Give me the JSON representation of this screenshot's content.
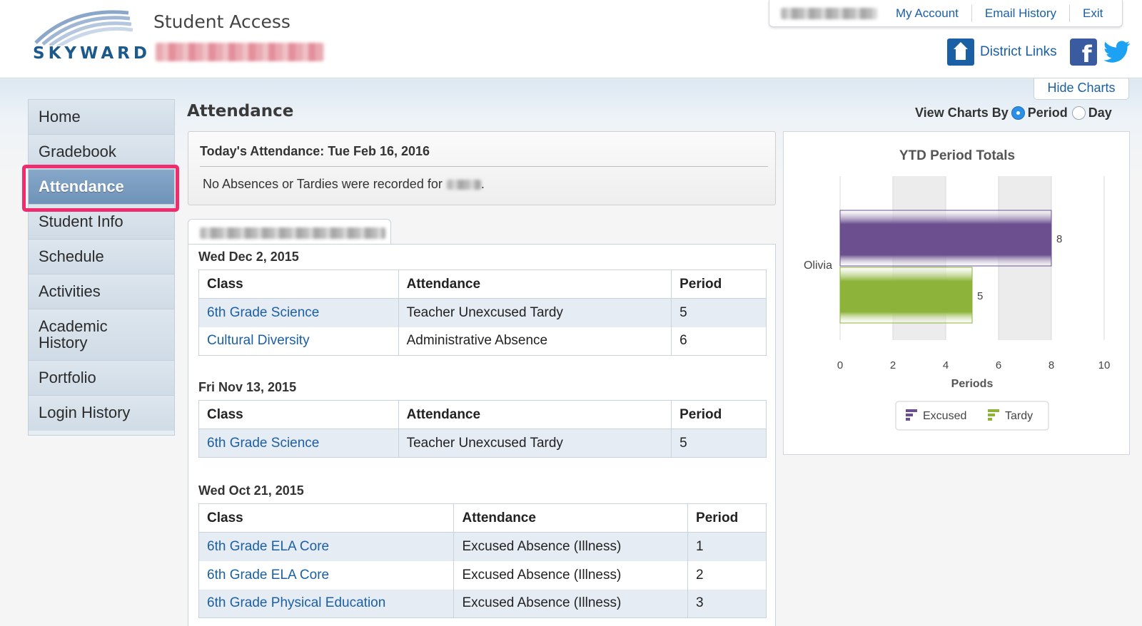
{
  "header": {
    "logo_text": "SKYWARD",
    "app_title": "Student Access",
    "top_links": [
      "My Account",
      "Email History",
      "Exit"
    ],
    "district_links_label": "District Links"
  },
  "sidebar": {
    "items": [
      {
        "label": "Home",
        "active": false
      },
      {
        "label": "Gradebook",
        "active": false
      },
      {
        "label": "Attendance",
        "active": true
      },
      {
        "label": "Student Info",
        "active": false
      },
      {
        "label": "Schedule",
        "active": false
      },
      {
        "label": "Activities",
        "active": false
      },
      {
        "label": "Academic History",
        "active": false
      },
      {
        "label": "Portfolio",
        "active": false
      },
      {
        "label": "Login History",
        "active": false
      }
    ]
  },
  "main": {
    "title": "Attendance",
    "today": {
      "title": "Today's Attendance: Tue Feb 16, 2016",
      "message": "No Absences or Tardies were recorded for",
      "message_end": "."
    },
    "columns": [
      "Class",
      "Attendance",
      "Period"
    ],
    "groups": [
      {
        "date": "Wed Dec 2, 2015",
        "rows": [
          {
            "class": "6th Grade Science",
            "attendance": "Teacher Unexcused Tardy",
            "period": "5"
          },
          {
            "class": "Cultural Diversity",
            "attendance": "Administrative Absence",
            "period": "6"
          }
        ]
      },
      {
        "date": "Fri Nov 13, 2015",
        "rows": [
          {
            "class": "6th Grade Science",
            "attendance": "Teacher Unexcused Tardy",
            "period": "5"
          }
        ]
      },
      {
        "date": "Wed Oct 21, 2015",
        "rows": [
          {
            "class": "6th Grade ELA Core",
            "attendance": "Excused Absence (Illness)",
            "period": "1"
          },
          {
            "class": "6th Grade ELA Core",
            "attendance": "Excused Absence (Illness)",
            "period": "2"
          },
          {
            "class": "6th Grade Physical Education",
            "attendance": "Excused Absence (Illness)",
            "period": "3"
          }
        ]
      }
    ]
  },
  "charts_panel": {
    "hide_charts_label": "Hide Charts",
    "view_by_label": "View Charts By",
    "options": [
      {
        "label": "Period",
        "checked": true
      },
      {
        "label": "Day",
        "checked": false
      }
    ]
  },
  "chart_data": {
    "type": "bar",
    "orientation": "horizontal",
    "title": "YTD Period Totals",
    "categories": [
      "Olivia"
    ],
    "series": [
      {
        "name": "Excused",
        "values": [
          8
        ],
        "color": "#6b4f8e"
      },
      {
        "name": "Tardy",
        "values": [
          5
        ],
        "color": "#8db33a"
      }
    ],
    "xlabel": "Periods",
    "xlim": [
      0,
      10
    ],
    "xticks": [
      "0",
      "2",
      "4",
      "6",
      "8",
      "10"
    ],
    "grid": true,
    "legend": "bottom"
  }
}
